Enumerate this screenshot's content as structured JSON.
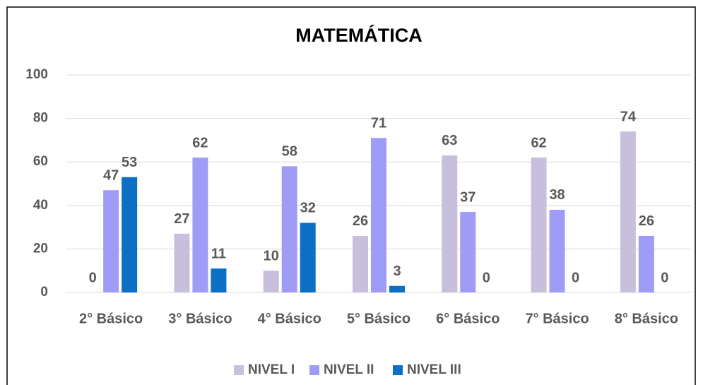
{
  "chart_data": {
    "type": "bar",
    "title": "MATEMÁTICA",
    "categories": [
      "2° Básico",
      "3° Básico",
      "4° Básico",
      "5° Básico",
      "6° Básico",
      "7° Básico",
      "8° Básico"
    ],
    "series": [
      {
        "name": "NIVEL I",
        "color": "#c8bfdc",
        "values": [
          0,
          27,
          10,
          26,
          63,
          62,
          74
        ]
      },
      {
        "name": "NIVEL II",
        "color": "#9f9cf7",
        "values": [
          47,
          62,
          58,
          71,
          37,
          38,
          26
        ]
      },
      {
        "name": "NIVEL III",
        "color": "#0b6fc3",
        "values": [
          53,
          11,
          32,
          3,
          0,
          0,
          0
        ]
      }
    ],
    "ylim": [
      0,
      100
    ],
    "yticks": [
      0,
      20,
      40,
      60,
      80,
      100
    ],
    "grid": true,
    "legend": "bottom"
  }
}
